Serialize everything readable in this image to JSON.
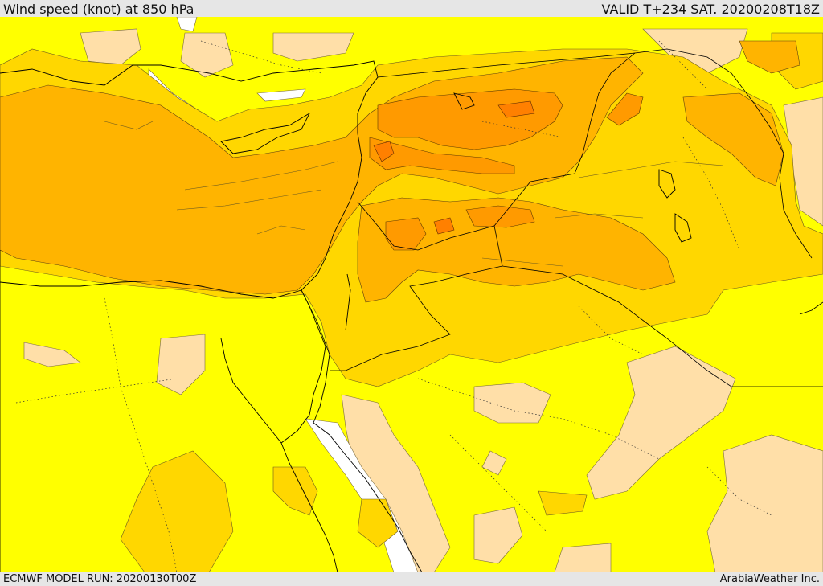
{
  "header": {
    "title": "Wind speed (knot) at 850 hPa",
    "valid": "VALID T+234 SAT. 20200208T18Z"
  },
  "footer": {
    "model_run": "ECMWF MODEL RUN: 20200130T00Z",
    "credit": "ArabiaWeather Inc."
  },
  "colors": {
    "lowest": "#ffdfa8",
    "low": "#ffff00",
    "moderate": "#ffd700",
    "high": "#ffb400",
    "higher": "#ff9a00",
    "highest": "#ff8000",
    "calm": "#ffffff",
    "boundary": "#000000"
  }
}
